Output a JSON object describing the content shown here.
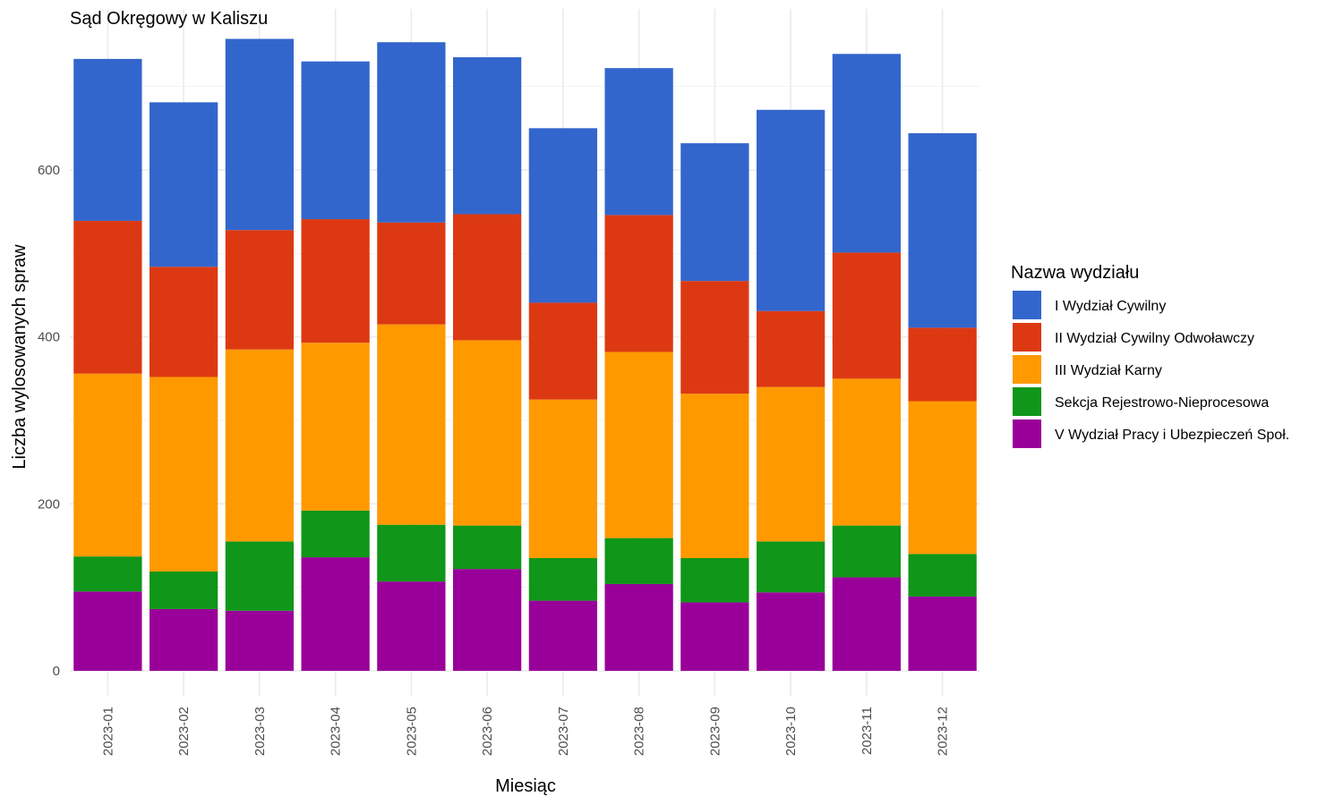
{
  "chart_data": {
    "type": "bar",
    "stacked": true,
    "title": "Sąd Okręgowy w Kaliszu",
    "xlabel": "Miesiąc",
    "ylabel": "Liczba wylosowanych spraw",
    "ylim": [
      0,
      790
    ],
    "yticks": [
      0,
      200,
      400,
      600
    ],
    "grid": true,
    "legend_position": "right",
    "legend_title": "Nazwa wydziału",
    "categories": [
      "2023-01",
      "2023-02",
      "2023-03",
      "2023-04",
      "2023-05",
      "2023-06",
      "2023-07",
      "2023-08",
      "2023-09",
      "2023-10",
      "2023-11",
      "2023-12"
    ],
    "series": [
      {
        "name": "I Wydział Cywilny",
        "color": "#3366CC",
        "values": [
          194,
          197,
          229,
          189,
          216,
          188,
          209,
          176,
          165,
          241,
          238,
          233
        ]
      },
      {
        "name": "II Wydział Cywilny Odwoławczy",
        "color": "#DC3912",
        "values": [
          183,
          132,
          143,
          148,
          122,
          151,
          116,
          164,
          135,
          91,
          151,
          88
        ]
      },
      {
        "name": "III Wydział Karny",
        "color": "#FF9900",
        "values": [
          219,
          233,
          230,
          201,
          240,
          222,
          190,
          223,
          197,
          185,
          176,
          183
        ]
      },
      {
        "name": "Sekcja Rejestrowo-Nieprocesowa",
        "color": "#109618",
        "values": [
          42,
          45,
          83,
          56,
          68,
          52,
          51,
          55,
          53,
          61,
          62,
          51
        ]
      },
      {
        "name": "V Wydział Pracy i Ubezpieczeń Społ.",
        "color": "#990099",
        "values": [
          95,
          74,
          72,
          136,
          107,
          122,
          84,
          104,
          82,
          94,
          112,
          89
        ]
      }
    ]
  }
}
